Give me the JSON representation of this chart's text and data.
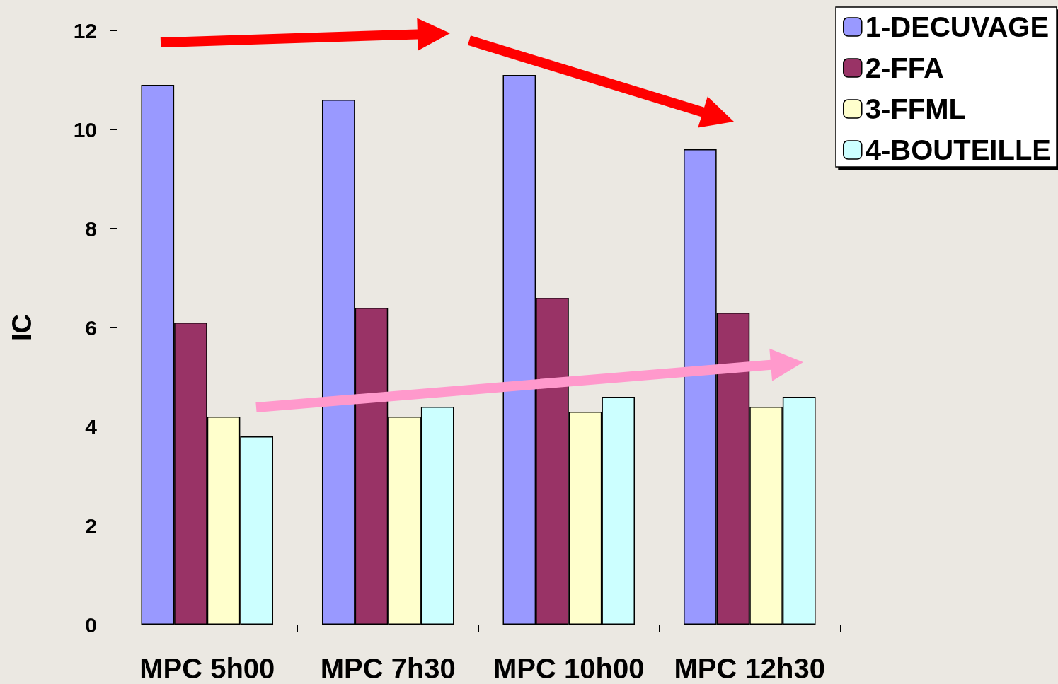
{
  "chart_data": {
    "type": "bar",
    "ylabel": "IC",
    "categories": [
      "MPC 5h00",
      "MPC 7h30",
      "MPC 10h00",
      "MPC 12h30"
    ],
    "series": [
      {
        "name": "1-DECUVAGE",
        "color": "#9999ff",
        "values": [
          10.9,
          10.6,
          11.1,
          9.6
        ]
      },
      {
        "name": "2-FFA",
        "color": "#993366",
        "values": [
          6.1,
          6.4,
          6.6,
          6.3
        ]
      },
      {
        "name": "3-FFML",
        "color": "#ffffcc",
        "values": [
          4.2,
          4.2,
          4.3,
          4.4
        ]
      },
      {
        "name": "4-BOUTEILLE",
        "color": "#ccffff",
        "values": [
          3.8,
          4.4,
          4.6,
          4.6
        ]
      }
    ],
    "ylim": [
      0,
      12
    ],
    "yticks": [
      0,
      2,
      4,
      6,
      8,
      10,
      12
    ],
    "grid": false,
    "legend": "top right"
  }
}
